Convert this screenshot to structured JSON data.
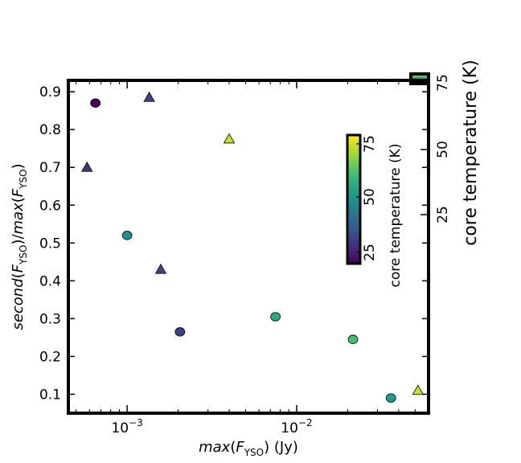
{
  "chart_data": {
    "type": "scatter",
    "xlabel": {
      "func": "max",
      "var": "F",
      "sub": "YSO",
      "unit": "(Jy)"
    },
    "ylabel": {
      "func1": "second",
      "func2": "max",
      "var": "F",
      "sub": "YSO"
    },
    "xscale": "log",
    "xlim": [
      0.00045,
      0.06
    ],
    "ylim": [
      0.05,
      0.93
    ],
    "x_ticks": [
      {
        "value": 0.001,
        "base": "10",
        "exp": "−3"
      },
      {
        "value": 0.01,
        "base": "10",
        "exp": "−2"
      }
    ],
    "y_ticks": [
      {
        "value": 0.1,
        "label": "0.1"
      },
      {
        "value": 0.2,
        "label": "0.2"
      },
      {
        "value": 0.3,
        "label": "0.3"
      },
      {
        "value": 0.4,
        "label": "0.4"
      },
      {
        "value": 0.5,
        "label": "0.5"
      },
      {
        "value": 0.6,
        "label": "0.6"
      },
      {
        "value": 0.7,
        "label": "0.7"
      },
      {
        "value": 0.8,
        "label": "0.8"
      },
      {
        "value": 0.9,
        "label": "0.9"
      }
    ],
    "colormap": "viridis",
    "color_range": [
      15,
      80
    ],
    "circle_points": [
      {
        "x": 0.00065,
        "y": 0.87,
        "temp": 15
      },
      {
        "x": 0.001,
        "y": 0.52,
        "temp": 47
      },
      {
        "x": 0.00205,
        "y": 0.265,
        "temp": 27
      },
      {
        "x": 0.0075,
        "y": 0.305,
        "temp": 55
      },
      {
        "x": 0.0215,
        "y": 0.245,
        "temp": 60
      },
      {
        "x": 0.036,
        "y": 0.09,
        "temp": 50
      }
    ],
    "triangle_points": [
      {
        "x": 0.00058,
        "y": 0.7,
        "temp": 25
      },
      {
        "x": 0.00135,
        "y": 0.885,
        "temp": 28
      },
      {
        "x": 0.00158,
        "y": 0.43,
        "temp": 28
      },
      {
        "x": 0.004,
        "y": 0.775,
        "temp": 75
      },
      {
        "x": 0.052,
        "y": 0.11,
        "temp": 75
      }
    ],
    "colorbar_outer": {
      "label": "core temperature (K)",
      "ticks": [
        {
          "value": 25,
          "label": "25"
        },
        {
          "value": 50,
          "label": "50"
        },
        {
          "value": 75,
          "label": "75"
        }
      ]
    },
    "colorbar_inner": {
      "label": "core temperature (K)",
      "ticks": [
        {
          "value": 25,
          "label": "25"
        },
        {
          "value": 50,
          "label": "50"
        },
        {
          "value": 75,
          "label": "75"
        }
      ]
    },
    "grid": false,
    "legend": "none"
  }
}
